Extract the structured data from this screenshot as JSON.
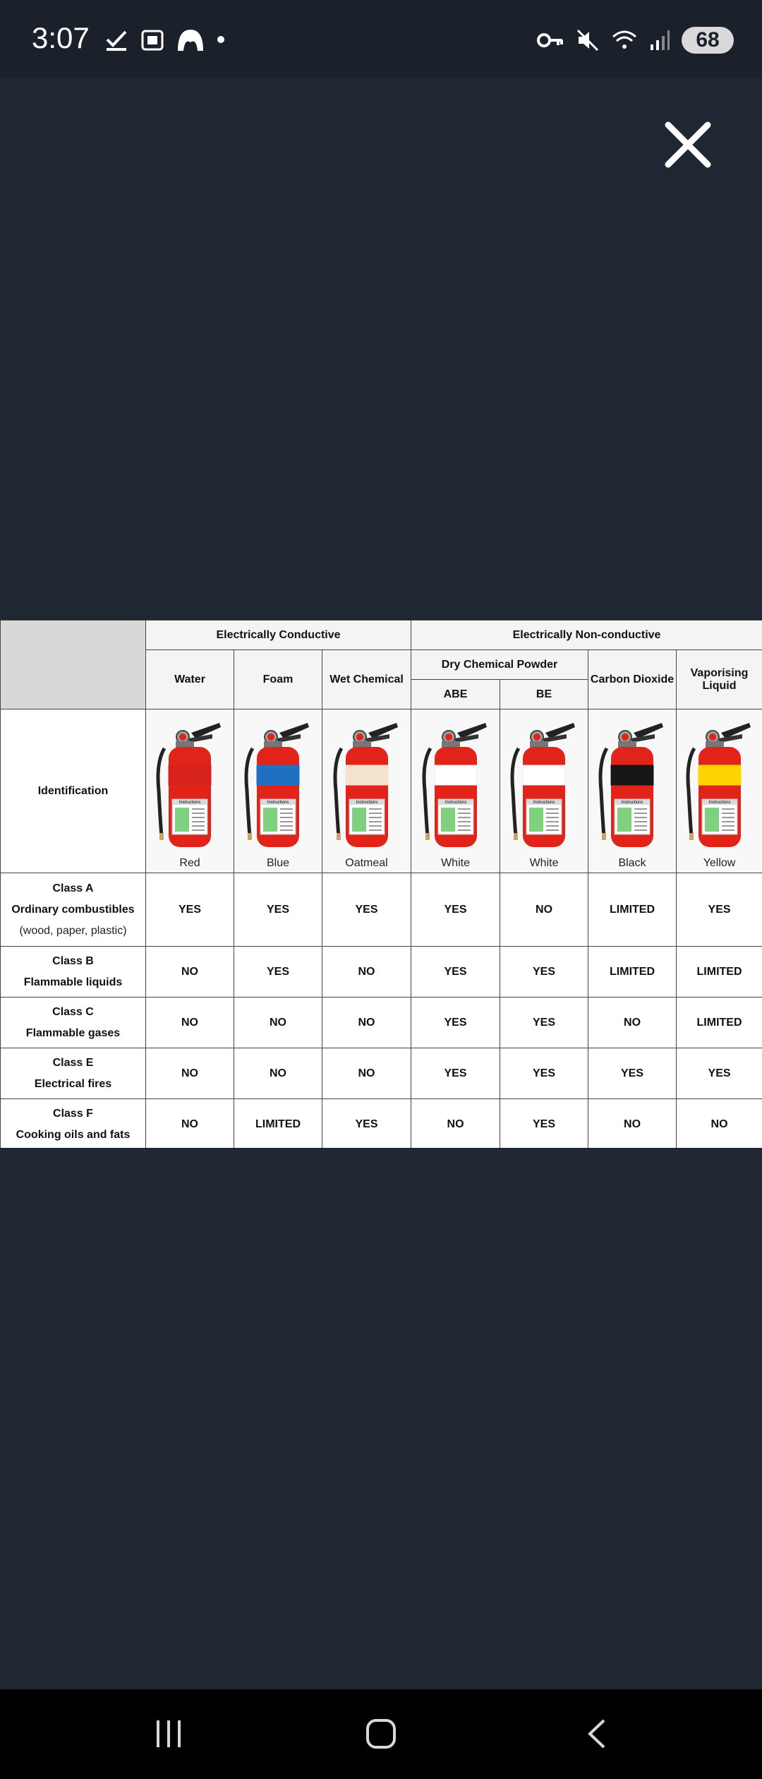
{
  "status_bar": {
    "time": "3:07",
    "left_icons": [
      "check-icon",
      "screenshot-icon",
      "app-icon",
      "dot-icon"
    ],
    "right_icons": [
      "key-icon",
      "mute-icon",
      "wifi-icon",
      "signal-icon"
    ],
    "battery": "68"
  },
  "viewer": {
    "close_icon": "close-icon"
  },
  "table": {
    "group_headers": {
      "conductive": "Electrically Conductive",
      "non_conductive": "Electrically Non-conductive"
    },
    "subgroup_header": "Dry Chemical Powder",
    "columns": [
      "Water",
      "Foam",
      "Wet Chemical",
      "ABE",
      "BE",
      "Carbon Dioxide",
      "Vaporising Liquid"
    ],
    "identification_label": "Identification",
    "extinguishers": [
      {
        "label": "Red",
        "band": "#d8231c"
      },
      {
        "label": "Blue",
        "band": "#1f6fc2"
      },
      {
        "label": "Oatmeal",
        "band": "#f3e3cf"
      },
      {
        "label": "White",
        "band": "#ffffff"
      },
      {
        "label": "White",
        "band": "#ffffff"
      },
      {
        "label": "Black",
        "band": "#161616"
      },
      {
        "label": "Yellow",
        "band": "#ffd500"
      }
    ],
    "extinguisher_body_color": "#e2231a",
    "instructions_label": "Instructions",
    "rows": [
      {
        "class": "Class A",
        "desc": "Ordinary combustibles",
        "sub": "(wood, paper, plastic)",
        "values": [
          "YES",
          "YES",
          "YES",
          "YES",
          "NO",
          "LIMITED",
          "YES"
        ]
      },
      {
        "class": "Class B",
        "desc": "Flammable liquids",
        "values": [
          "NO",
          "YES",
          "NO",
          "YES",
          "YES",
          "LIMITED",
          "LIMITED"
        ]
      },
      {
        "class": "Class C",
        "desc": "Flammable gases",
        "values": [
          "NO",
          "NO",
          "NO",
          "YES",
          "YES",
          "NO",
          "LIMITED"
        ]
      },
      {
        "class": "Class E",
        "desc": "Electrical fires",
        "values": [
          "NO",
          "NO",
          "NO",
          "YES",
          "YES",
          "YES",
          "YES"
        ]
      },
      {
        "class": "Class F",
        "desc": "Cooking oils and fats",
        "values": [
          "NO",
          "LIMITED",
          "YES",
          "NO",
          "YES",
          "NO",
          "NO"
        ]
      }
    ]
  },
  "nav_bar": {
    "buttons": [
      "recents-icon",
      "home-icon",
      "back-icon"
    ]
  }
}
